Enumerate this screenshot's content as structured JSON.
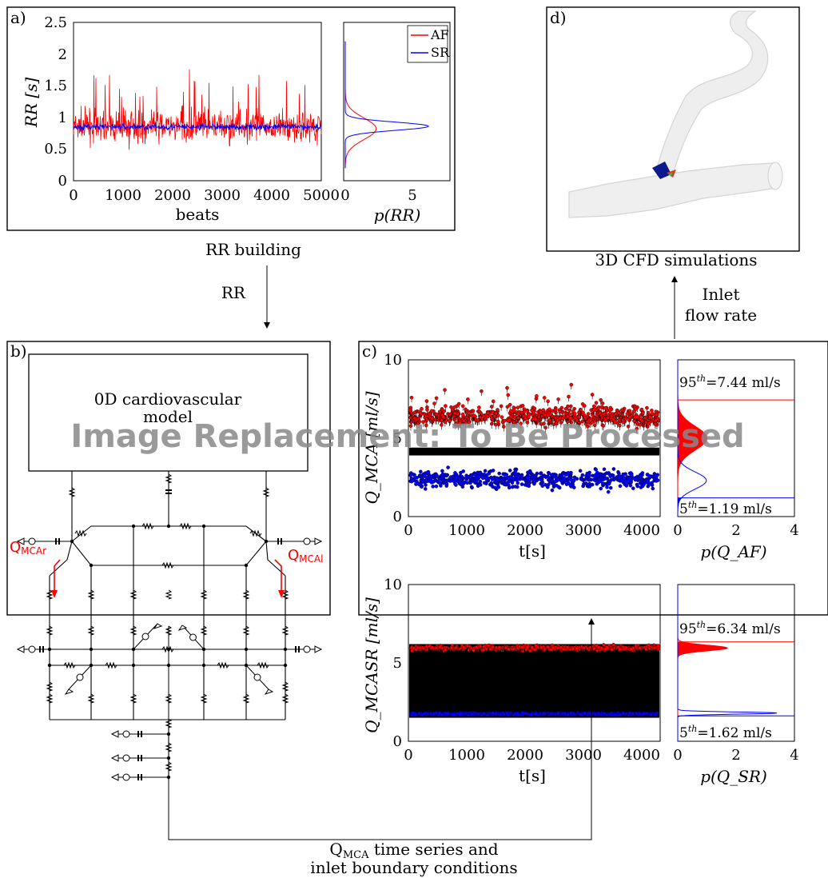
{
  "panels": {
    "a": {
      "tag": "a)",
      "caption": "RR building",
      "ts": {
        "ylabel": "RR [s]",
        "xlabel": "beats",
        "xticks": [
          "0",
          "1000",
          "2000",
          "3000",
          "4000",
          "5000"
        ],
        "yticks": [
          "0",
          "0.5",
          "1",
          "1.5",
          "2",
          "2.5"
        ]
      },
      "pdf": {
        "xlabel": "p(RR)",
        "xticks": [
          "0",
          "5"
        ],
        "legend": [
          {
            "label": "AF",
            "color": "#ff0000"
          },
          {
            "label": "SR",
            "color": "#0000ff"
          }
        ]
      }
    },
    "b": {
      "tag": "b)",
      "box_text": "0D cardiovascular model",
      "q_left": "Q",
      "q_left_sub": "MCAr",
      "q_right": "Q",
      "q_right_sub": "MCAl"
    },
    "c": {
      "tag": "c)",
      "top": {
        "ylabel": "Q_MCA [ml/s]",
        "xlabel": "t[s]",
        "xticks": [
          "0",
          "1000",
          "2000",
          "3000",
          "4000"
        ],
        "yticks": [
          "0",
          "5",
          "10"
        ],
        "pdf_xlabel": "p(Q_AF)",
        "pdf_xticks": [
          "0",
          "2",
          "4"
        ],
        "p95": "95",
        "p95_val": "=7.44 ml/s",
        "p5": "5",
        "p5_val": "=1.19 ml/s"
      },
      "bottom": {
        "ylabel": "Q_MCASR [ml/s]",
        "xlabel": "t[s]",
        "xticks": [
          "0",
          "1000",
          "2000",
          "3000",
          "4000"
        ],
        "yticks": [
          "0",
          "5",
          "10"
        ],
        "pdf_xlabel": "p(Q_SR)",
        "pdf_xticks": [
          "0",
          "2",
          "4"
        ],
        "p95": "95",
        "p95_val": "=6.34 ml/s",
        "p5": "5",
        "p5_val": "=1.62 ml/s"
      }
    },
    "d": {
      "tag": "d)",
      "caption": "3D CFD simulations"
    }
  },
  "arrows": {
    "rr": "RR",
    "inlet_line1": "Inlet",
    "inlet_line2": "flow rate",
    "bottom_line1_main": "Q",
    "bottom_line1_sub": "MCA",
    "bottom_line1_rest": " time series and",
    "bottom_line2": "inlet boundary conditions"
  },
  "overlay": {
    "text": "Image Replacement: To Be Processed"
  },
  "colors": {
    "af": "#ff0000",
    "sr": "#0000ff",
    "black": "#000000",
    "vessel": "#eeeeee"
  },
  "chart_data": [
    {
      "type": "line",
      "panel": "a-timeseries",
      "xlabel": "beats",
      "ylabel": "RR [s]",
      "xlim": [
        0,
        5000
      ],
      "ylim": [
        0,
        2.5
      ],
      "series": [
        {
          "name": "AF",
          "mean": 0.85,
          "min": 0.3,
          "max": 2.05
        },
        {
          "name": "SR",
          "mean": 0.85,
          "min": 0.65,
          "max": 1.0
        }
      ]
    },
    {
      "type": "line",
      "panel": "a-pdf",
      "xlabel": "p(RR)",
      "ylabel": "",
      "xlim": [
        0,
        7
      ],
      "ylim": [
        0,
        2.5
      ],
      "series": [
        {
          "name": "AF",
          "peak_y": 0.82,
          "peak_x": 2.3
        },
        {
          "name": "SR",
          "peak_y": 0.86,
          "peak_x": 6.2
        }
      ]
    },
    {
      "type": "scatter",
      "panel": "c-top",
      "xlabel": "t[s]",
      "ylabel": "Q_MCA [ml/s]",
      "xlim": [
        0,
        4300
      ],
      "ylim": [
        0,
        10
      ],
      "series": [
        {
          "name": "peaks",
          "band": [
            4.0,
            9.3
          ]
        },
        {
          "name": "troughs",
          "band": [
            0.8,
            4.5
          ]
        }
      ],
      "pdf": {
        "xlim": [
          0,
          4
        ],
        "p95": 7.44,
        "p5": 1.19,
        "peak_high": [
          1.0,
          5.0
        ],
        "peak_low": [
          0.98,
          2.3
        ]
      }
    },
    {
      "type": "scatter",
      "panel": "c-bottom",
      "xlabel": "t[s]",
      "ylabel": "Q_MCASR [ml/s]",
      "xlim": [
        0,
        4300
      ],
      "ylim": [
        0,
        10
      ],
      "series": [
        {
          "name": "peaks",
          "band": [
            5.3,
            6.6
          ]
        },
        {
          "name": "troughs",
          "band": [
            1.4,
            2.1
          ]
        }
      ],
      "pdf": {
        "xlim": [
          0,
          4
        ],
        "p95": 6.34,
        "p5": 1.62,
        "peak_high": [
          1.7,
          5.95
        ],
        "peak_low": [
          3.4,
          1.8
        ]
      }
    }
  ]
}
